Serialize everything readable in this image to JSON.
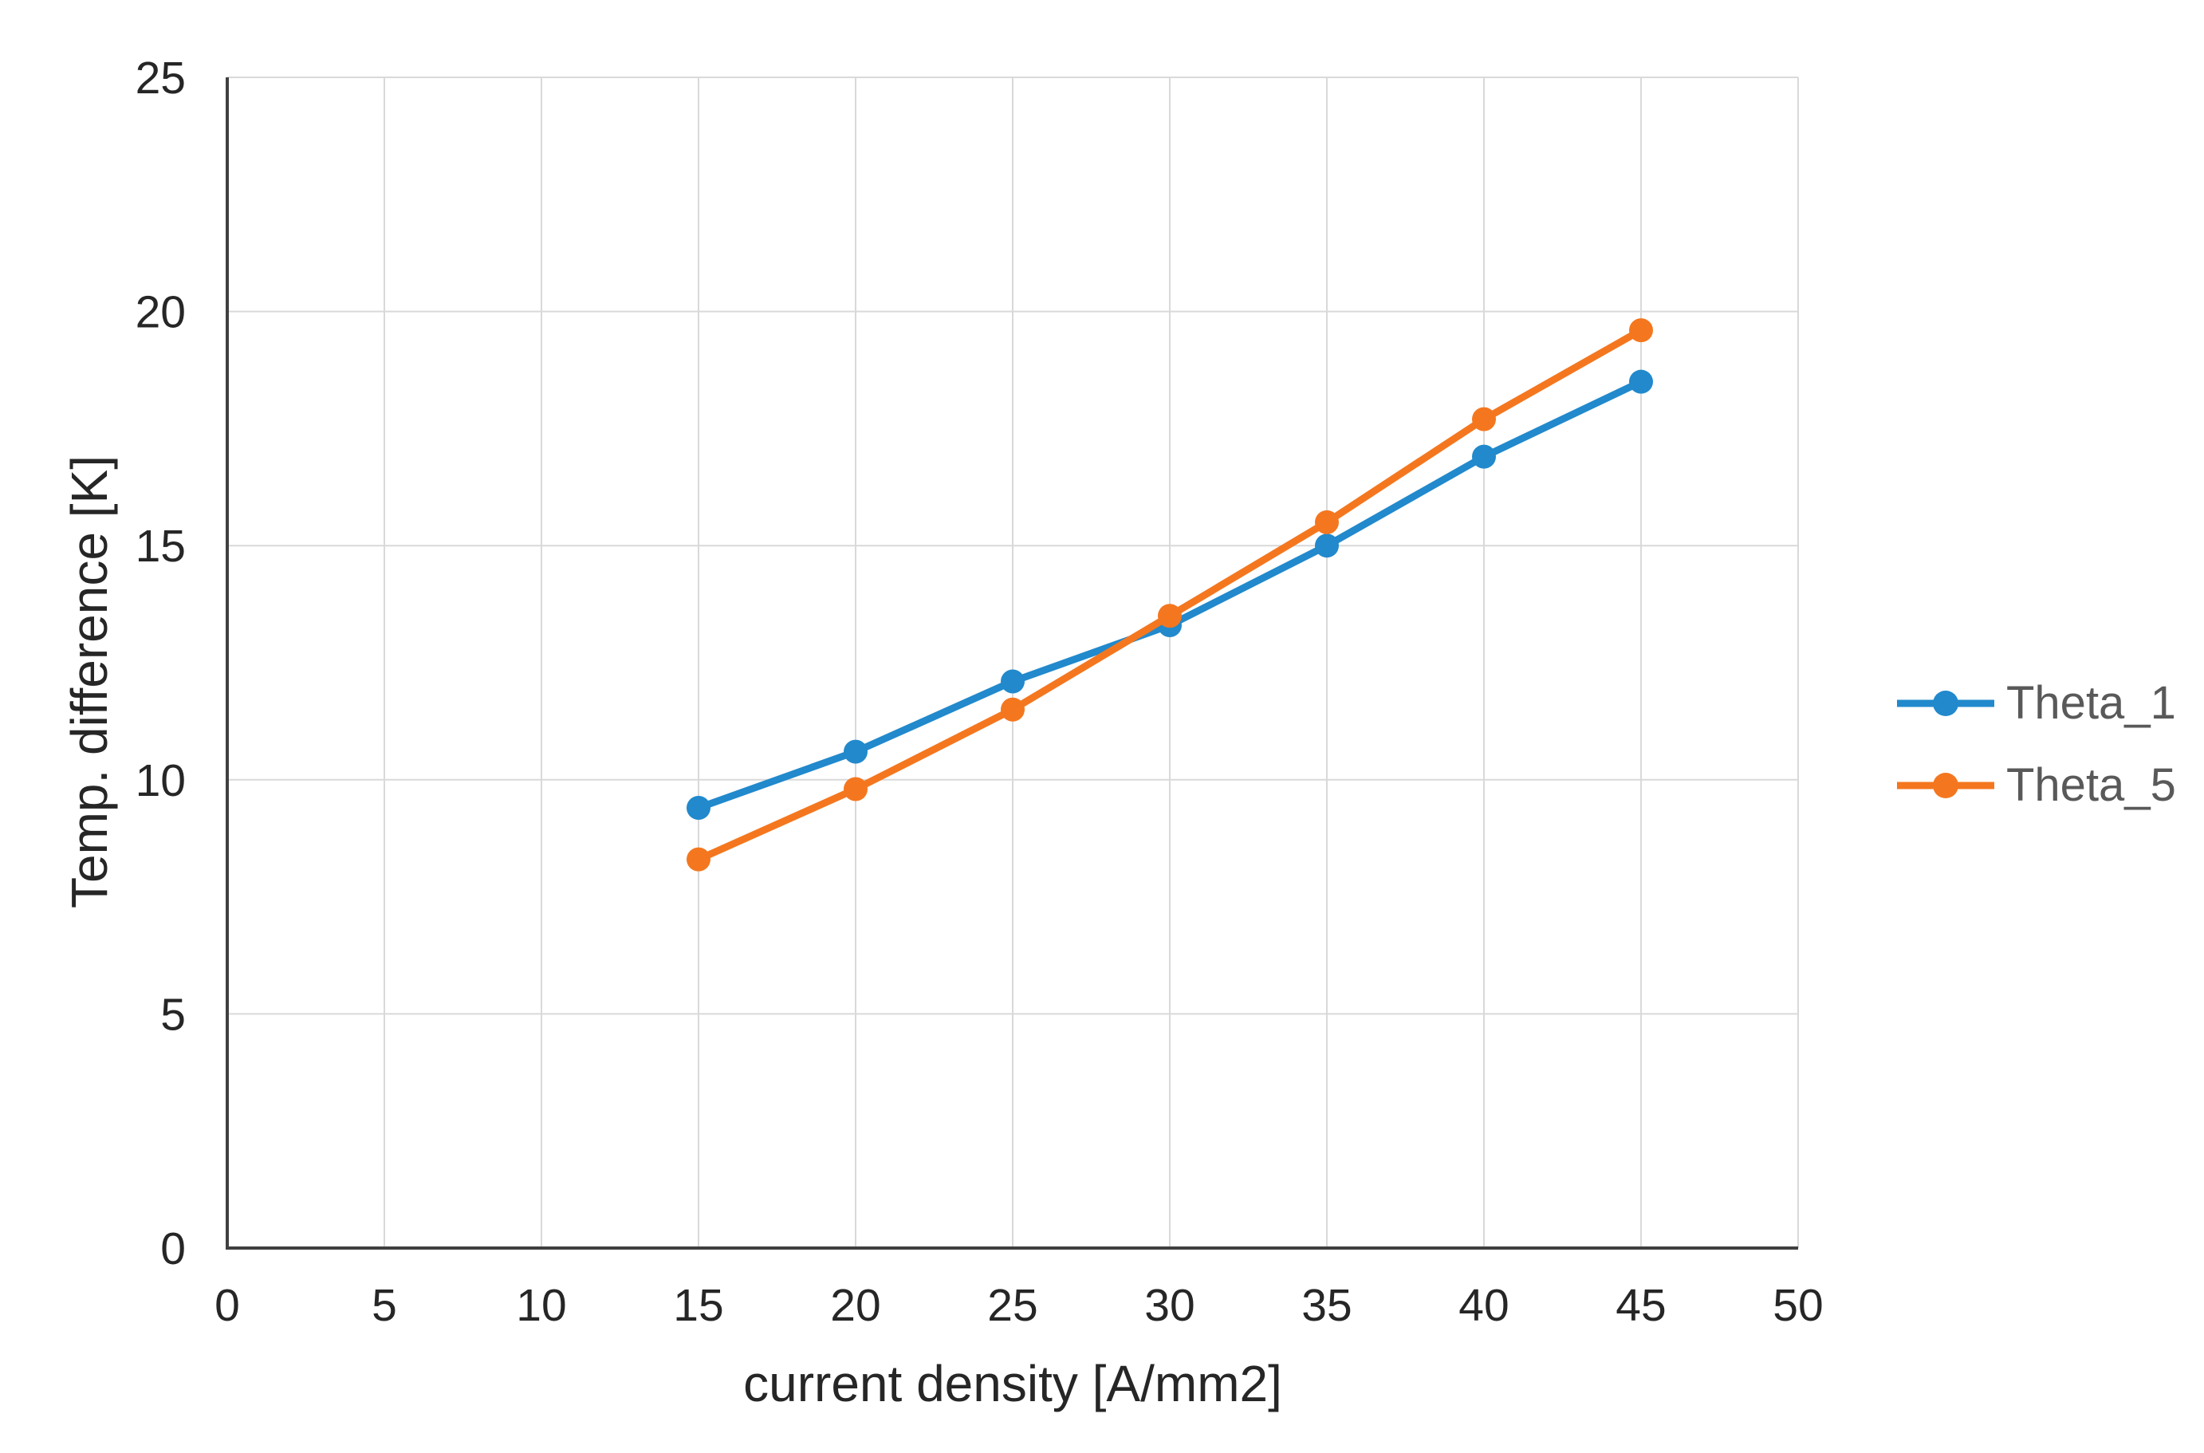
{
  "chart_data": {
    "type": "line",
    "x": [
      15,
      20,
      25,
      30,
      35,
      40,
      45
    ],
    "series": [
      {
        "name": "Theta_1",
        "color": "#2189CC",
        "values": [
          9.4,
          10.6,
          12.1,
          13.3,
          15.0,
          16.9,
          18.5
        ]
      },
      {
        "name": "Theta_5",
        "color": "#F4771F",
        "values": [
          8.3,
          9.8,
          11.5,
          13.5,
          15.5,
          17.7,
          19.6
        ]
      }
    ],
    "xlabel": "current density [A/mm2]",
    "ylabel": "Temp. difference [K]",
    "xlim": [
      0,
      50
    ],
    "ylim": [
      0,
      25
    ],
    "xticks": [
      0,
      5,
      10,
      15,
      20,
      25,
      30,
      35,
      40,
      45,
      50
    ],
    "yticks": [
      0,
      5,
      10,
      15,
      20,
      25
    ],
    "grid": true,
    "legend_position": "right-middle",
    "styles": {
      "gridline_color": "#D9D9D9",
      "axis_color": "#404040",
      "tick_label_color": "#262626",
      "axis_title_color": "#262626",
      "legend_text_color": "#595959"
    }
  }
}
